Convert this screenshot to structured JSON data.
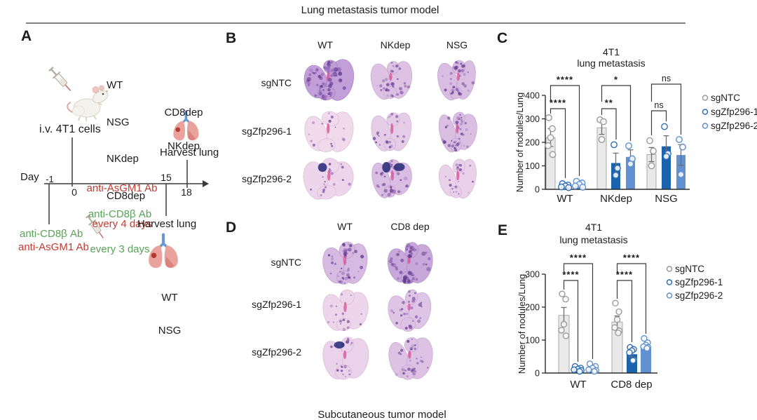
{
  "header": {
    "title": "Lung metastasis tumor model"
  },
  "footer": {
    "title": "Subcutaneous tumor model"
  },
  "panelA": {
    "label": "A",
    "strains": [
      "WT",
      "NSG",
      "NKdep",
      "CD8dep"
    ],
    "injection_label": "i.v. 4T1 cells",
    "timeline": {
      "axis_label": "Day",
      "tick_minus1": "-1",
      "tick_0": "0",
      "tick_15": "15",
      "tick_18": "18"
    },
    "asgm1_treatment": {
      "line1": "anti-AsGM1 Ab",
      "line2": "every 4 days"
    },
    "cd8b_treatment": {
      "line1": "anti-CD8β Ab",
      "line2": "every 3 days"
    },
    "day_minus1_injections": {
      "green": "anti-CD8β Ab",
      "red": "anti-AsGM1 Ab"
    },
    "harvest_day18": {
      "groups": [
        "CD8dep",
        "NKdep"
      ],
      "label": "Harvest lung"
    },
    "harvest_day15": {
      "label": "Harvest lung",
      "groups": [
        "WT",
        "NSG"
      ]
    }
  },
  "panelB": {
    "label": "B",
    "columns": [
      "WT",
      "NKdep",
      "NSG"
    ],
    "rows": [
      "sgNTC",
      "sgZfp296-1",
      "sgZfp296-2"
    ],
    "image_type": "H&E lung sections",
    "tumor_burden": [
      [
        0.92,
        0.42,
        0.5
      ],
      [
        0.1,
        0.28,
        0.48
      ],
      [
        0.15,
        0.5,
        0.22
      ]
    ],
    "dark_blobs": [
      [
        0,
        0,
        0
      ],
      [
        0,
        0,
        0
      ],
      [
        1,
        2,
        0
      ]
    ]
  },
  "panelD": {
    "label": "D",
    "columns": [
      "WT",
      "CD8 dep"
    ],
    "rows": [
      "sgNTC",
      "sgZfp296-1",
      "sgZfp296-2"
    ],
    "image_type": "H&E lung sections",
    "tumor_burden": [
      [
        0.55,
        0.8
      ],
      [
        0.15,
        0.4
      ],
      [
        0.2,
        0.42
      ]
    ],
    "dark_blobs": [
      [
        0,
        0
      ],
      [
        0,
        0
      ],
      [
        1,
        0
      ]
    ]
  },
  "colors": {
    "accent_red": "#c23b32",
    "accent_green": "#58a258",
    "bar_gray": "#e9e9e9",
    "bar_blue_dark": "#1b64ad",
    "bar_blue_light": "#6191d0",
    "lung_pink": "#e9a29c",
    "trachea_blue": "#6b97d4",
    "tumor_red": "#b23a30",
    "axis": "#2b2b2b"
  },
  "chart_data": [
    {
      "panel": "C",
      "type": "bar",
      "title": "4T1 lung metastasis",
      "title_lines": [
        "4T1",
        "lung metastasis"
      ],
      "xlabel": "",
      "ylabel": "Number of nodules/Lung",
      "ylim": [
        0,
        400
      ],
      "yticks": [
        0,
        100,
        200,
        300,
        400
      ],
      "grid": false,
      "legend_position": "right",
      "categories": [
        "WT",
        "NKdep",
        "NSG"
      ],
      "legend": [
        "sgNTC",
        "sgZfp296-1",
        "sgZfp296-2"
      ],
      "series": [
        {
          "name": "sgNTC",
          "fill": "#e9e9e9",
          "edge": "#a9a9a9",
          "point_color": "#9a9a9a",
          "values": [
            220,
            262,
            148
          ],
          "sem": [
            38,
            28,
            30
          ],
          "points": [
            [
              305,
              258,
              220,
              186,
              148
            ],
            [
              296,
              288,
              212
            ],
            [
              207,
              163,
              100
            ]
          ]
        },
        {
          "name": "sgZfp296-1",
          "fill": "#1b64ad",
          "edge": "none",
          "point_color": "#2e6db2",
          "values": [
            15,
            112,
            183
          ],
          "sem": [
            6,
            42,
            45
          ],
          "points": [
            [
              24,
              18,
              14,
              10,
              7
            ],
            [
              190,
              90,
              60
            ],
            [
              267,
              152,
              140
            ]
          ]
        },
        {
          "name": "sgZfp296-2",
          "fill": "#6191d0",
          "edge": "none",
          "point_color": "#5e90cf",
          "values": [
            18,
            138,
            146
          ],
          "sem": [
            7,
            30,
            44
          ],
          "points": [
            [
              34,
              27,
              21,
              14,
              9
            ],
            [
              185,
              130,
              108
            ],
            [
              212,
              180,
              63
            ]
          ]
        }
      ],
      "significance": [
        {
          "group": "WT",
          "vs": "sgZfp296-1",
          "label": "****"
        },
        {
          "group": "WT",
          "vs": "sgZfp296-2",
          "label": "****"
        },
        {
          "group": "NKdep",
          "vs": "sgZfp296-1",
          "label": "**"
        },
        {
          "group": "NKdep",
          "vs": "sgZfp296-2",
          "label": "*"
        },
        {
          "group": "NSG",
          "vs": "sgZfp296-1",
          "label": "ns"
        },
        {
          "group": "NSG",
          "vs": "sgZfp296-2",
          "label": "ns"
        }
      ]
    },
    {
      "panel": "E",
      "type": "bar",
      "title": "4T1 lung metastasis",
      "title_lines": [
        "4T1",
        "lung metastasis"
      ],
      "xlabel": "",
      "ylabel": "Number of nodules/Lung",
      "ylim": [
        0,
        300
      ],
      "yticks": [
        0,
        100,
        200,
        300
      ],
      "grid": false,
      "legend_position": "right",
      "categories": [
        "WT",
        "CD8 dep"
      ],
      "legend": [
        "sgNTC",
        "sgZfp296-1",
        "sgZfp296-2"
      ],
      "series": [
        {
          "name": "sgNTC",
          "fill": "#e9e9e9",
          "edge": "#a9a9a9",
          "point_color": "#9a9a9a",
          "values": [
            175,
            155
          ],
          "sem": [
            24,
            18
          ],
          "points": [
            [
              240,
              224,
              148,
              130,
              113
            ],
            [
              212,
              186,
              162,
              138,
              128,
              122
            ]
          ]
        },
        {
          "name": "sgZfp296-1",
          "fill": "#1b64ad",
          "edge": "none",
          "point_color": "#2e6db2",
          "values": [
            12,
            57
          ],
          "sem": [
            4,
            8
          ],
          "points": [
            [
              20,
              15,
              12,
              10,
              8,
              5
            ],
            [
              78,
              72,
              68,
              62,
              40,
              38
            ]
          ]
        },
        {
          "name": "sgZfp296-2",
          "fill": "#6191d0",
          "edge": "none",
          "point_color": "#5e90cf",
          "values": [
            10,
            78
          ],
          "sem": [
            4,
            7
          ],
          "points": [
            [
              28,
              20,
              15,
              10,
              8,
              5
            ],
            [
              105,
              92,
              85,
              80,
              78,
              75
            ]
          ]
        }
      ],
      "significance": [
        {
          "group": "WT",
          "vs": "sgZfp296-1",
          "label": "****"
        },
        {
          "group": "WT",
          "vs": "sgZfp296-2",
          "label": "****"
        },
        {
          "group": "CD8 dep",
          "vs": "sgZfp296-1",
          "label": "****"
        },
        {
          "group": "CD8 dep",
          "vs": "sgZfp296-2",
          "label": "****"
        }
      ]
    }
  ]
}
